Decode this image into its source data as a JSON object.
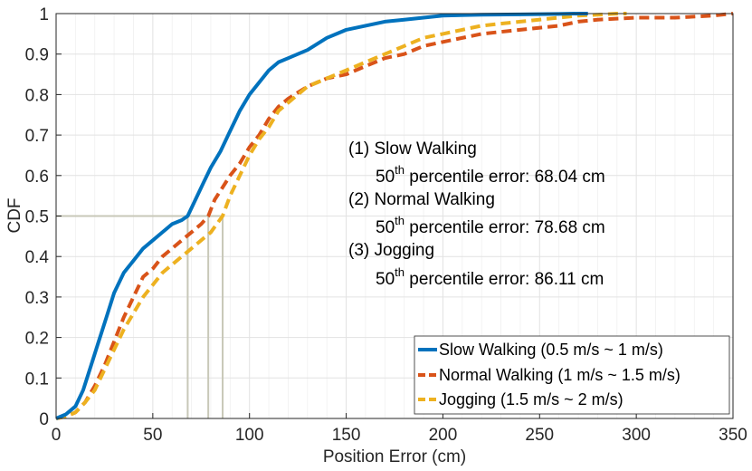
{
  "chart_data": {
    "type": "line",
    "title": "",
    "xlabel": "Position Error (cm)",
    "ylabel": "CDF",
    "xlim": [
      0,
      350
    ],
    "ylim": [
      0,
      1
    ],
    "xticks": [
      0,
      50,
      100,
      150,
      200,
      250,
      300,
      350
    ],
    "yticks": [
      0,
      0.1,
      0.2,
      0.3,
      0.4,
      0.5,
      0.6,
      0.7,
      0.8,
      0.9,
      1
    ],
    "grid": true,
    "legend_position": "bottom-right",
    "series": [
      {
        "name": "Slow Walking (0.5 m/s ~ 1 m/s)",
        "color": "#0072BD",
        "style": "solid",
        "x": [
          0,
          5,
          10,
          14,
          18,
          22,
          26,
          30,
          35,
          40,
          45,
          50,
          55,
          60,
          65,
          68.04,
          72,
          76,
          80,
          85,
          90,
          95,
          100,
          105,
          110,
          115,
          120,
          125,
          130,
          140,
          150,
          160,
          170,
          180,
          190,
          200,
          220,
          240,
          260,
          270,
          275
        ],
        "y": [
          0,
          0.01,
          0.03,
          0.07,
          0.13,
          0.19,
          0.25,
          0.31,
          0.36,
          0.39,
          0.42,
          0.44,
          0.46,
          0.48,
          0.49,
          0.5,
          0.54,
          0.58,
          0.62,
          0.66,
          0.71,
          0.76,
          0.8,
          0.83,
          0.86,
          0.88,
          0.89,
          0.9,
          0.91,
          0.94,
          0.96,
          0.97,
          0.98,
          0.985,
          0.99,
          0.995,
          0.997,
          0.998,
          0.999,
          1,
          1
        ]
      },
      {
        "name": "Normal Walking (1 m/s ~ 1.5 m/s)",
        "color": "#D95319",
        "style": "dashed",
        "x": [
          0,
          5,
          10,
          15,
          20,
          25,
          30,
          35,
          40,
          45,
          50,
          55,
          60,
          65,
          70,
          75,
          78.68,
          82,
          86,
          90,
          95,
          100,
          105,
          110,
          115,
          120,
          130,
          140,
          150,
          160,
          170,
          180,
          190,
          200,
          220,
          240,
          260,
          270,
          280,
          300,
          320,
          340,
          350
        ],
        "y": [
          0,
          0.005,
          0.015,
          0.04,
          0.08,
          0.13,
          0.19,
          0.25,
          0.3,
          0.35,
          0.37,
          0.4,
          0.42,
          0.44,
          0.46,
          0.48,
          0.5,
          0.54,
          0.57,
          0.6,
          0.63,
          0.67,
          0.7,
          0.74,
          0.77,
          0.79,
          0.82,
          0.84,
          0.85,
          0.87,
          0.89,
          0.9,
          0.92,
          0.93,
          0.95,
          0.96,
          0.97,
          0.98,
          0.985,
          0.99,
          0.99,
          0.995,
          1
        ]
      },
      {
        "name": "Jogging (1.5 m/s ~ 2 m/s)",
        "color": "#EDB120",
        "style": "dashed",
        "x": [
          0,
          5,
          10,
          15,
          20,
          25,
          30,
          35,
          40,
          45,
          50,
          55,
          60,
          65,
          70,
          75,
          80,
          86.11,
          90,
          95,
          100,
          105,
          110,
          115,
          120,
          130,
          140,
          150,
          160,
          170,
          180,
          190,
          200,
          220,
          240,
          260,
          270,
          280,
          290,
          295
        ],
        "y": [
          0,
          0.005,
          0.015,
          0.04,
          0.07,
          0.12,
          0.17,
          0.22,
          0.26,
          0.3,
          0.33,
          0.36,
          0.38,
          0.4,
          0.42,
          0.44,
          0.46,
          0.5,
          0.55,
          0.6,
          0.65,
          0.69,
          0.72,
          0.76,
          0.78,
          0.82,
          0.84,
          0.86,
          0.88,
          0.9,
          0.92,
          0.94,
          0.95,
          0.97,
          0.98,
          0.99,
          0.995,
          0.997,
          1,
          1
        ]
      }
    ],
    "reference_lines": {
      "y": 0.5,
      "x": [
        68.04,
        78.68,
        86.11
      ],
      "color": "#c8c8b8"
    },
    "annotations": [
      {
        "label": "(1) Slow Walking",
        "line": "50",
        "sup": "th",
        "rest": " percentile error: 68.04 cm"
      },
      {
        "label": "(2) Normal Walking",
        "line": "50",
        "sup": "th",
        "rest": " percentile error: 78.68 cm"
      },
      {
        "label": "(3) Jogging",
        "line": "50",
        "sup": "th",
        "rest": " percentile error: 86.11 cm"
      }
    ]
  }
}
